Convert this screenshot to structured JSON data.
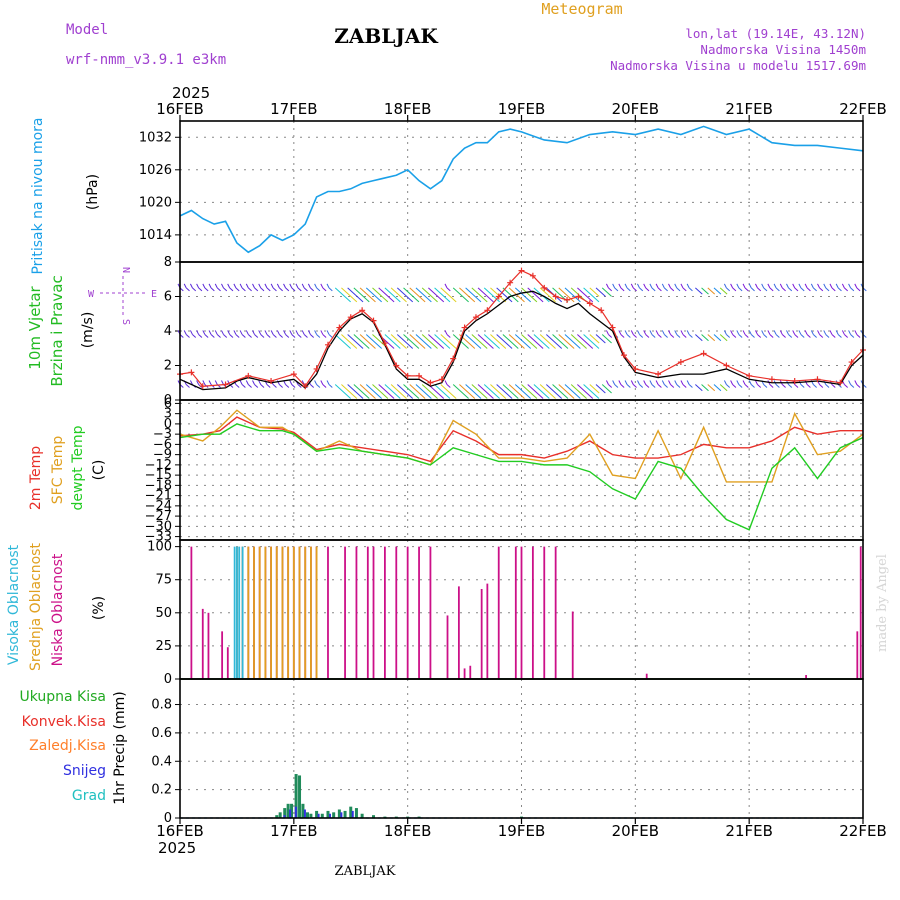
{
  "header": {
    "model_label": "Model",
    "model_name": "wrf-nmm_v3.9.1  e3km",
    "station": "ZABLJAK",
    "meteogram_label": "Meteogram",
    "coords": "lon,lat (19.14E, 43.12N)",
    "elevation": "Nadmorska Visina 1450m",
    "model_elevation": "Nadmorska Visina u modelu 1517.69m",
    "year_top": "2025",
    "year_bottom": "2025",
    "footer_station": "ZABLJAK",
    "credit": "made by Angel"
  },
  "colors": {
    "pressure": "#1aa0e8",
    "wind_speed_10m": "#000000",
    "wind_gust": "#e8302a",
    "t2m": "#e8302a",
    "sfc_temp": "#e0a020",
    "dewpt": "#22cc22",
    "cloud_high": "#30b8d8",
    "cloud_mid": "#e0a020",
    "cloud_low": "#cc1088",
    "precip_total": "#22aa22",
    "precip_conv": "#e8302a",
    "precip_frozen": "#ff7f2a",
    "snow": "#3030e0",
    "hail": "#20c0c0",
    "model_text": "#a040d0",
    "meteogram_text": "#e0a020"
  },
  "chart_data": [
    {
      "type": "line",
      "panel": "pressure",
      "ylabel": "Pritisak na nivou mora",
      "unit": "(hPa)",
      "x_dates": [
        "16FEB",
        "17FEB",
        "18FEB",
        "19FEB",
        "20FEB",
        "21FEB",
        "22FEB"
      ],
      "ylim": [
        1009,
        1035
      ],
      "yticks": [
        1014,
        1020,
        1026,
        1032
      ],
      "x": [
        0,
        0.1,
        0.2,
        0.3,
        0.4,
        0.5,
        0.6,
        0.7,
        0.8,
        0.9,
        1.0,
        1.1,
        1.2,
        1.3,
        1.4,
        1.5,
        1.6,
        1.7,
        1.8,
        1.9,
        2.0,
        2.1,
        2.2,
        2.3,
        2.4,
        2.5,
        2.6,
        2.7,
        2.8,
        2.9,
        3.0,
        3.2,
        3.4,
        3.6,
        3.8,
        4.0,
        4.2,
        4.4,
        4.6,
        4.8,
        5.0,
        5.2,
        5.4,
        5.6,
        5.8,
        6.0
      ],
      "values": [
        1017.5,
        1018.5,
        1017,
        1016,
        1016.5,
        1012.5,
        1010.8,
        1012,
        1014,
        1013,
        1014,
        1016,
        1021,
        1022,
        1022,
        1022.5,
        1023.5,
        1024,
        1024.5,
        1025,
        1026,
        1024,
        1022.5,
        1024,
        1028,
        1030,
        1031,
        1031,
        1033,
        1033.5,
        1033,
        1031.5,
        1031,
        1032.5,
        1033,
        1032.5,
        1033.5,
        1032.5,
        1034,
        1032.5,
        1033.5,
        1031,
        1030.5,
        1030.5,
        1030,
        1029.5
      ]
    },
    {
      "type": "line",
      "panel": "wind",
      "ylabel": "10m Vjetar",
      "ylabel2": "Brzina i Pravac",
      "unit": "(m/s)",
      "compass": {
        "n": "N",
        "w": "W",
        "e": "E",
        "s": "S"
      },
      "ylim": [
        0,
        8
      ],
      "yticks": [
        0,
        2,
        4,
        6,
        8
      ],
      "series": [
        {
          "name": "10m wind speed",
          "x": [
            0,
            0.2,
            0.4,
            0.5,
            0.6,
            0.8,
            1.0,
            1.1,
            1.2,
            1.3,
            1.4,
            1.5,
            1.6,
            1.7,
            1.8,
            1.9,
            2.0,
            2.1,
            2.2,
            2.3,
            2.4,
            2.5,
            2.6,
            2.7,
            2.8,
            2.9,
            3.0,
            3.1,
            3.2,
            3.3,
            3.4,
            3.5,
            3.6,
            3.7,
            3.8,
            3.9,
            4.0,
            4.2,
            4.4,
            4.6,
            4.8,
            5.0,
            5.2,
            5.4,
            5.6,
            5.8,
            5.9,
            6.0
          ],
          "values": [
            1.2,
            0.6,
            0.7,
            1.1,
            1.3,
            1.0,
            1.2,
            0.7,
            1.5,
            3.0,
            4.0,
            4.7,
            5.0,
            4.5,
            3.2,
            1.8,
            1.2,
            1.2,
            0.8,
            1.0,
            2.2,
            4.0,
            4.6,
            5.0,
            5.5,
            6.0,
            6.2,
            6.3,
            6.0,
            5.6,
            5.3,
            5.6,
            5.0,
            4.5,
            4.0,
            2.5,
            1.6,
            1.3,
            1.5,
            1.5,
            1.8,
            1.2,
            1.0,
            1.0,
            1.1,
            0.9,
            2.0,
            2.6
          ]
        },
        {
          "name": "wind gust",
          "x": [
            0,
            0.1,
            0.2,
            0.4,
            0.6,
            0.8,
            1.0,
            1.1,
            1.2,
            1.3,
            1.4,
            1.5,
            1.6,
            1.7,
            1.8,
            1.9,
            2.0,
            2.1,
            2.2,
            2.3,
            2.4,
            2.5,
            2.6,
            2.7,
            2.8,
            2.9,
            3.0,
            3.1,
            3.2,
            3.3,
            3.4,
            3.5,
            3.6,
            3.7,
            3.8,
            3.9,
            4.0,
            4.2,
            4.4,
            4.6,
            4.8,
            5.0,
            5.2,
            5.4,
            5.6,
            5.8,
            5.9,
            6.0
          ],
          "values": [
            1.5,
            1.6,
            0.8,
            0.9,
            1.4,
            1.1,
            1.5,
            0.8,
            1.8,
            3.2,
            4.2,
            4.8,
            5.2,
            4.6,
            3.3,
            2.0,
            1.4,
            1.4,
            1.0,
            1.2,
            2.4,
            4.2,
            4.8,
            5.2,
            6.0,
            6.8,
            7.5,
            7.2,
            6.5,
            6.0,
            5.8,
            6.0,
            5.6,
            5.2,
            4.2,
            2.6,
            1.8,
            1.5,
            2.2,
            2.7,
            2.0,
            1.4,
            1.2,
            1.1,
            1.2,
            1.0,
            2.2,
            2.9
          ]
        }
      ],
      "barb_rows": [
        6.5,
        3.8,
        0.9
      ]
    },
    {
      "type": "line",
      "panel": "temperature",
      "ylabels": [
        "2m Temp",
        "SFC Temp",
        "dewpt Temp"
      ],
      "unit": "(C)",
      "ylim": [
        -34,
        7
      ],
      "yticks": [
        6,
        3,
        0,
        -3,
        -6,
        -9,
        -12,
        -15,
        -18,
        -21,
        -24,
        -27,
        -30,
        -33
      ],
      "ytick_labels": [
        "6",
        "3",
        "0",
        "−3",
        "−6",
        "−9",
        "−12",
        "−15",
        "−18",
        "−21",
        "−24",
        "−27",
        "−30",
        "−33"
      ],
      "series": [
        {
          "name": "2m Temp",
          "x": [
            0,
            0.2,
            0.35,
            0.5,
            0.7,
            0.9,
            1.0,
            1.2,
            1.4,
            1.6,
            1.8,
            2.0,
            2.2,
            2.4,
            2.6,
            2.8,
            3.0,
            3.2,
            3.4,
            3.6,
            3.8,
            4.0,
            4.2,
            4.4,
            4.6,
            4.8,
            5.0,
            5.2,
            5.4,
            5.6,
            5.8,
            6.0
          ],
          "values": [
            -3.5,
            -3,
            -2,
            2,
            -1,
            -1.5,
            -2.5,
            -7.5,
            -6,
            -7,
            -8,
            -9,
            -11,
            -2,
            -5,
            -9,
            -9,
            -10,
            -8,
            -5,
            -9,
            -10,
            -10,
            -9,
            -6,
            -7,
            -7,
            -5,
            -1,
            -3,
            -2,
            -2
          ]
        },
        {
          "name": "SFC Temp",
          "x": [
            0,
            0.2,
            0.35,
            0.5,
            0.7,
            0.9,
            1.0,
            1.2,
            1.4,
            1.6,
            1.8,
            2.0,
            2.2,
            2.4,
            2.6,
            2.8,
            3.0,
            3.2,
            3.4,
            3.6,
            3.8,
            4.0,
            4.2,
            4.4,
            4.6,
            4.8,
            5.0,
            5.2,
            5.4,
            5.6,
            5.8,
            6.0
          ],
          "values": [
            -3,
            -5,
            -1,
            4,
            -1,
            -1,
            -3,
            -8,
            -5,
            -8,
            -9,
            -10,
            -12,
            1,
            -3,
            -10,
            -10,
            -11,
            -10,
            -3,
            -15,
            -16,
            -2,
            -16,
            -1,
            -17,
            -17,
            -17,
            3,
            -9,
            -8,
            -3
          ]
        },
        {
          "name": "dewpt Temp",
          "x": [
            0,
            0.2,
            0.35,
            0.5,
            0.7,
            0.9,
            1.0,
            1.2,
            1.4,
            1.6,
            1.8,
            2.0,
            2.2,
            2.4,
            2.6,
            2.8,
            3.0,
            3.2,
            3.4,
            3.6,
            3.8,
            4.0,
            4.2,
            4.4,
            4.6,
            4.8,
            5.0,
            5.2,
            5.4,
            5.6,
            5.8,
            6.0
          ],
          "values": [
            -4,
            -3,
            -3,
            0,
            -2,
            -2,
            -3,
            -8,
            -7,
            -8,
            -9,
            -10,
            -12,
            -7,
            -9,
            -11,
            -11,
            -12,
            -12,
            -14,
            -19,
            -22,
            -11,
            -13,
            -21,
            -28,
            -31,
            -13,
            -7,
            -16,
            -7,
            -4
          ]
        }
      ]
    },
    {
      "type": "bar",
      "panel": "cloud",
      "ylabels": [
        "Visoka Oblacnost",
        "Srednja Oblacnost",
        "Niska Oblacnost"
      ],
      "unit": "(%)",
      "ylim": [
        0,
        105
      ],
      "yticks": [
        0,
        25,
        50,
        75,
        100
      ],
      "series": [
        {
          "name": "Niska Oblacnost",
          "x": [
            0.1,
            0.2,
            0.25,
            0.37,
            0.42,
            0.5,
            0.55,
            0.6,
            0.65,
            0.7,
            0.75,
            0.8,
            0.85,
            0.9,
            0.95,
            1.0,
            1.05,
            1.1,
            1.15,
            1.2,
            1.3,
            1.45,
            1.55,
            1.65,
            1.7,
            1.8,
            1.9,
            2.0,
            2.1,
            2.2,
            2.35,
            2.45,
            2.5,
            2.55,
            2.65,
            2.7,
            2.8,
            2.95,
            3.0,
            3.1,
            3.2,
            3.3,
            3.45,
            4.1,
            5.5,
            5.95,
            5.98
          ],
          "values": [
            100,
            53,
            50,
            36,
            24,
            100,
            100,
            100,
            100,
            100,
            100,
            100,
            100,
            100,
            100,
            100,
            100,
            100,
            100,
            100,
            100,
            100,
            100,
            100,
            100,
            100,
            100,
            100,
            100,
            100,
            48,
            70,
            8,
            10,
            68,
            72,
            100,
            100,
            100,
            100,
            100,
            100,
            51,
            4,
            3,
            36,
            100
          ]
        },
        {
          "name": "Srednja Oblacnost",
          "x": [
            0.5,
            0.55,
            0.6,
            0.65,
            0.7,
            0.75,
            0.8,
            0.85,
            0.9,
            0.95,
            1.0,
            1.05,
            1.1,
            1.15,
            1.2
          ],
          "values": [
            100,
            100,
            100,
            100,
            100,
            100,
            100,
            100,
            100,
            100,
            100,
            100,
            100,
            100,
            100
          ]
        },
        {
          "name": "Visoka Oblacnost",
          "x": [
            0.48,
            0.5,
            0.52,
            0.55
          ],
          "values": [
            100,
            100,
            100,
            100
          ]
        }
      ]
    },
    {
      "type": "bar",
      "panel": "precip",
      "ylabel": "1hr Precip (mm)",
      "legend": [
        "Ukupna Kisa",
        "Konvek.Kisa",
        "Zaledj.Kisa",
        "Snijeg",
        "Grad"
      ],
      "ylim": [
        0,
        0.98
      ],
      "yticks": [
        0,
        0.2,
        0.4,
        0.6,
        0.8
      ],
      "ytick_labels": [
        "0",
        "0.2",
        "0.4",
        "0.6",
        "0.8"
      ],
      "series": [
        {
          "name": "Ukupna Kisa",
          "x": [
            0.85,
            0.88,
            0.92,
            0.95,
            0.98,
            1.02,
            1.05,
            1.08,
            1.12,
            1.15,
            1.2,
            1.25,
            1.3,
            1.35,
            1.4,
            1.45,
            1.5,
            1.55,
            1.6,
            1.7,
            1.8,
            1.9,
            2.0,
            2.1,
            3.0
          ],
          "values": [
            0.02,
            0.04,
            0.07,
            0.1,
            0.1,
            0.31,
            0.3,
            0.1,
            0.04,
            0.03,
            0.05,
            0.03,
            0.05,
            0.04,
            0.06,
            0.05,
            0.08,
            0.07,
            0.03,
            0.02,
            0.01,
            0.01,
            0.01,
            0.01,
            0.01
          ]
        },
        {
          "name": "Snijeg",
          "x": [
            0.9,
            0.95,
            1.0,
            1.08,
            1.2,
            1.3,
            1.4,
            1.5
          ],
          "values": [
            0.02,
            0.06,
            0.08,
            0.06,
            0.03,
            0.03,
            0.04,
            0.05
          ]
        }
      ]
    }
  ]
}
